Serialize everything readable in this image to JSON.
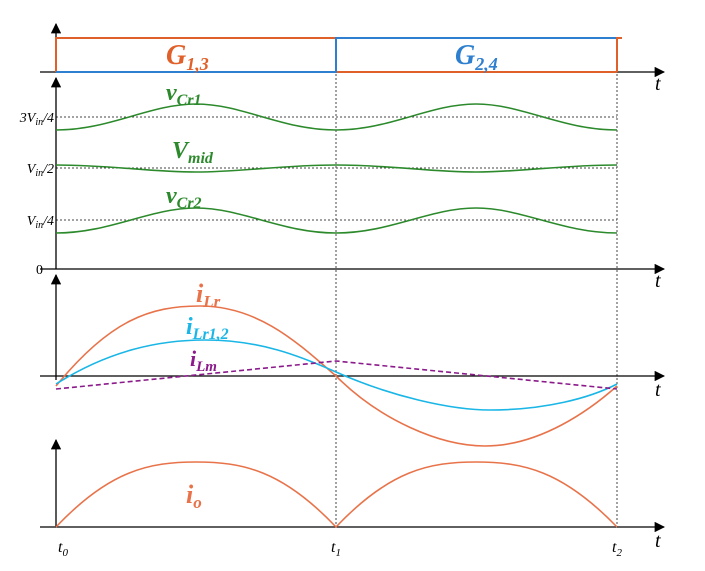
{
  "colors": {
    "orange": "#e8734a",
    "gate_orange": "#e0602a",
    "blue": "#2e7fcf",
    "green": "#2c8a2c",
    "cyan": "#19b6e6",
    "purple": "#8b1a8b",
    "axis": "#000000",
    "grid": "#444444"
  },
  "gates": {
    "g13": {
      "base": "G",
      "sub": "1,3"
    },
    "g24": {
      "base": "G",
      "sub": "2,4"
    }
  },
  "axis_label": "t",
  "y_ticks": {
    "three_quarter": {
      "pre": "3V",
      "sub": "in",
      "post": "/4"
    },
    "half": {
      "pre": "V",
      "sub": "in",
      "post": "/2"
    },
    "quarter": {
      "pre": "V",
      "sub": "in",
      "post": "/4"
    },
    "zero": "0"
  },
  "voltage_labels": {
    "vcr1": {
      "base": "v",
      "sub": "Cr1"
    },
    "vmid": {
      "base": "V",
      "sub": "mid"
    },
    "vcr2": {
      "base": "v",
      "sub": "Cr2"
    }
  },
  "current_labels": {
    "ilr": {
      "base": "i",
      "sub": "Lr"
    },
    "ilr12": {
      "base": "i",
      "sub": "Lr1,2"
    },
    "ilm": {
      "base": "i",
      "sub": "Lm"
    },
    "io": {
      "base": "i",
      "sub": "o"
    }
  },
  "time_marks": {
    "t0": {
      "base": "t",
      "sub": "0"
    },
    "t1": {
      "base": "t",
      "sub": "1"
    },
    "t2": {
      "base": "t",
      "sub": "2"
    }
  },
  "icons": [
    "axis-arrow-icon"
  ]
}
